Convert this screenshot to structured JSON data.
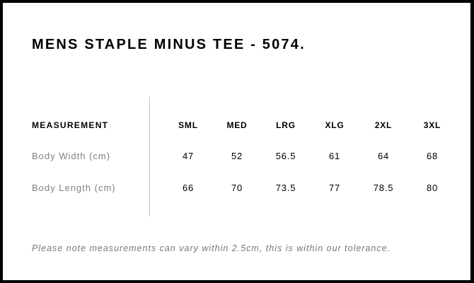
{
  "title": "MENS STAPLE MINUS TEE - 5074.",
  "table": {
    "header": "MEASUREMENT",
    "sizes": [
      "SML",
      "MED",
      "LRG",
      "XLG",
      "2XL",
      "3XL"
    ],
    "rows": [
      {
        "label": "Body Width (cm)",
        "values": [
          "47",
          "52",
          "56.5",
          "61",
          "64",
          "68"
        ]
      },
      {
        "label": "Body Length (cm)",
        "values": [
          "66",
          "70",
          "73.5",
          "77",
          "78.5",
          "80"
        ]
      }
    ]
  },
  "note": "Please note measurements can vary within 2.5cm, this is within our tolerance."
}
